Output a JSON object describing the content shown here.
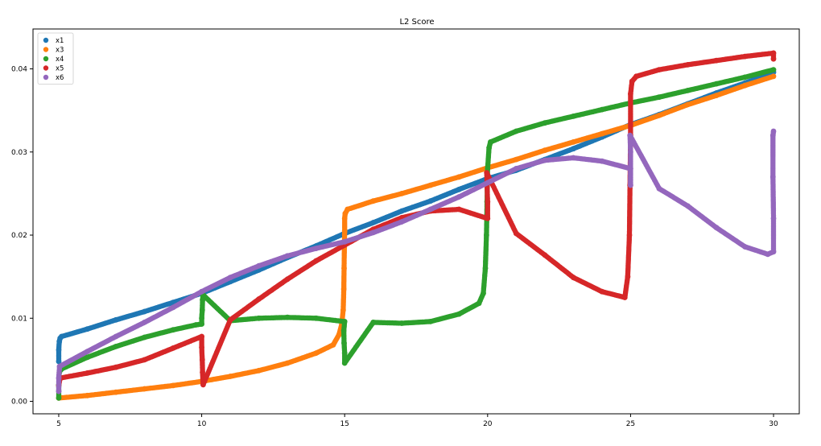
{
  "chart_data": {
    "type": "scatter",
    "title": "L2 Score",
    "xlabel": "",
    "ylabel": "",
    "xlim": [
      4.1,
      30.9
    ],
    "ylim": [
      -0.0015,
      0.0448
    ],
    "x_ticks": [
      5,
      10,
      15,
      20,
      25,
      30
    ],
    "x_tick_labels": [
      "5",
      "10",
      "15",
      "20",
      "25",
      "30"
    ],
    "y_ticks": [
      0.0,
      0.01,
      0.02,
      0.03,
      0.04
    ],
    "y_tick_labels": [
      "0.00",
      "0.01",
      "0.02",
      "0.03",
      "0.04"
    ],
    "grid": false,
    "legend": "top-left",
    "marker": "circle",
    "series": [
      {
        "name": "x1",
        "color": "#1f77b4",
        "points": [
          [
            5.0,
            0.0048
          ],
          [
            5.0,
            0.0062
          ],
          [
            5.02,
            0.0072
          ],
          [
            5.05,
            0.0076
          ],
          [
            5.1,
            0.0078
          ],
          [
            6,
            0.0087
          ],
          [
            7,
            0.0098
          ],
          [
            8,
            0.0108
          ],
          [
            9,
            0.0119
          ],
          [
            10,
            0.013
          ],
          [
            11,
            0.0144
          ],
          [
            12,
            0.0158
          ],
          [
            13,
            0.0173
          ],
          [
            14,
            0.0187
          ],
          [
            15,
            0.0202
          ],
          [
            16,
            0.0215
          ],
          [
            17,
            0.0229
          ],
          [
            18,
            0.0241
          ],
          [
            19,
            0.0255
          ],
          [
            20,
            0.0268
          ],
          [
            21,
            0.0278
          ],
          [
            22,
            0.0291
          ],
          [
            23,
            0.0304
          ],
          [
            24,
            0.0318
          ],
          [
            25,
            0.0333
          ],
          [
            26,
            0.0345
          ],
          [
            27,
            0.0358
          ],
          [
            28,
            0.0371
          ],
          [
            29,
            0.0383
          ],
          [
            30,
            0.0396
          ]
        ]
      },
      {
        "name": "x3",
        "color": "#ff7f0e",
        "points": [
          [
            5.0,
            0.0004
          ],
          [
            6,
            0.0007
          ],
          [
            7,
            0.0011
          ],
          [
            8,
            0.0015
          ],
          [
            9,
            0.0019
          ],
          [
            10,
            0.0024
          ],
          [
            11,
            0.003
          ],
          [
            12,
            0.0037
          ],
          [
            13,
            0.0046
          ],
          [
            14,
            0.0058
          ],
          [
            14.6,
            0.0068
          ],
          [
            14.8,
            0.008
          ],
          [
            14.9,
            0.0093
          ],
          [
            14.95,
            0.011
          ],
          [
            14.97,
            0.0135
          ],
          [
            14.98,
            0.016
          ],
          [
            14.99,
            0.0185
          ],
          [
            15.0,
            0.0205
          ],
          [
            15.0,
            0.022
          ],
          [
            15.02,
            0.0226
          ],
          [
            15.1,
            0.0231
          ],
          [
            16,
            0.0241
          ],
          [
            17,
            0.025
          ],
          [
            18,
            0.026
          ],
          [
            19,
            0.027
          ],
          [
            20,
            0.0281
          ],
          [
            21,
            0.0291
          ],
          [
            22,
            0.0302
          ],
          [
            23,
            0.0312
          ],
          [
            24,
            0.0322
          ],
          [
            25,
            0.0332
          ],
          [
            26,
            0.0344
          ],
          [
            27,
            0.0357
          ],
          [
            28,
            0.0368
          ],
          [
            29,
            0.038
          ],
          [
            30,
            0.0391
          ]
        ]
      },
      {
        "name": "x4",
        "color": "#2ca02c",
        "points": [
          [
            5.0,
            0.0004
          ],
          [
            5.0,
            0.002
          ],
          [
            5.02,
            0.0035
          ],
          [
            5.1,
            0.0039
          ],
          [
            6,
            0.0053
          ],
          [
            7,
            0.0066
          ],
          [
            8,
            0.0077
          ],
          [
            9,
            0.0086
          ],
          [
            9.8,
            0.0092
          ],
          [
            10,
            0.0093
          ],
          [
            10.0,
            0.01
          ],
          [
            10.02,
            0.011
          ],
          [
            10.03,
            0.0122
          ],
          [
            10.05,
            0.0128
          ],
          [
            11,
            0.0097
          ],
          [
            12,
            0.01
          ],
          [
            13,
            0.0101
          ],
          [
            14,
            0.01
          ],
          [
            15,
            0.0096
          ],
          [
            14.97,
            0.0085
          ],
          [
            14.98,
            0.007
          ],
          [
            15.0,
            0.0058
          ],
          [
            15.0,
            0.0046
          ],
          [
            16,
            0.0095
          ],
          [
            17,
            0.0094
          ],
          [
            18,
            0.0096
          ],
          [
            19,
            0.0105
          ],
          [
            19.7,
            0.0118
          ],
          [
            19.85,
            0.013
          ],
          [
            19.92,
            0.016
          ],
          [
            19.96,
            0.02
          ],
          [
            19.98,
            0.024
          ],
          [
            20.0,
            0.028
          ],
          [
            20.05,
            0.0305
          ],
          [
            20.1,
            0.0312
          ],
          [
            21,
            0.0325
          ],
          [
            22,
            0.0335
          ],
          [
            23,
            0.0343
          ],
          [
            24,
            0.0351
          ],
          [
            25,
            0.0359
          ],
          [
            26,
            0.0366
          ],
          [
            27,
            0.0374
          ],
          [
            28,
            0.0382
          ],
          [
            29,
            0.039
          ],
          [
            30,
            0.0399
          ]
        ]
      },
      {
        "name": "x5",
        "color": "#d62728",
        "points": [
          [
            5.0,
            0.0019
          ],
          [
            5.05,
            0.0028
          ],
          [
            6,
            0.0034
          ],
          [
            7,
            0.0041
          ],
          [
            8,
            0.005
          ],
          [
            9,
            0.0064
          ],
          [
            10,
            0.0078
          ],
          [
            10.0,
            0.0065
          ],
          [
            10.02,
            0.005
          ],
          [
            10.03,
            0.0035
          ],
          [
            10.05,
            0.002
          ],
          [
            11,
            0.0098
          ],
          [
            12,
            0.0123
          ],
          [
            13,
            0.0147
          ],
          [
            14,
            0.0169
          ],
          [
            15,
            0.0188
          ],
          [
            16,
            0.0207
          ],
          [
            17,
            0.0221
          ],
          [
            18,
            0.0229
          ],
          [
            19,
            0.0231
          ],
          [
            20,
            0.022
          ],
          [
            20.0,
            0.024
          ],
          [
            19.98,
            0.026
          ],
          [
            19.97,
            0.0275
          ],
          [
            21,
            0.0202
          ],
          [
            22,
            0.0176
          ],
          [
            23,
            0.0149
          ],
          [
            24,
            0.0132
          ],
          [
            24.8,
            0.0125
          ],
          [
            24.9,
            0.015
          ],
          [
            24.96,
            0.02
          ],
          [
            24.98,
            0.026
          ],
          [
            25.0,
            0.032
          ],
          [
            25.0,
            0.037
          ],
          [
            25.05,
            0.0385
          ],
          [
            25.2,
            0.0391
          ],
          [
            26,
            0.0399
          ],
          [
            27,
            0.0405
          ],
          [
            28,
            0.041
          ],
          [
            29,
            0.0415
          ],
          [
            30,
            0.0419
          ],
          [
            30.0,
            0.0412
          ]
        ]
      },
      {
        "name": "x6",
        "color": "#9467bd",
        "points": [
          [
            5.0,
            0.0012
          ],
          [
            5.0,
            0.0028
          ],
          [
            5.03,
            0.0042
          ],
          [
            6,
            0.006
          ],
          [
            7,
            0.0078
          ],
          [
            8,
            0.0095
          ],
          [
            9,
            0.0113
          ],
          [
            10,
            0.0132
          ],
          [
            11,
            0.0149
          ],
          [
            12,
            0.0163
          ],
          [
            13,
            0.0175
          ],
          [
            14,
            0.0184
          ],
          [
            15,
            0.0192
          ],
          [
            16,
            0.0203
          ],
          [
            17,
            0.0216
          ],
          [
            18,
            0.0231
          ],
          [
            19,
            0.0246
          ],
          [
            20,
            0.0263
          ],
          [
            21,
            0.028
          ],
          [
            22,
            0.029
          ],
          [
            23,
            0.0293
          ],
          [
            24,
            0.0289
          ],
          [
            25,
            0.028
          ],
          [
            25.0,
            0.026
          ],
          [
            25.0,
            0.03
          ],
          [
            24.98,
            0.032
          ],
          [
            26,
            0.0256
          ],
          [
            27,
            0.0235
          ],
          [
            28,
            0.0209
          ],
          [
            29,
            0.0186
          ],
          [
            29.8,
            0.0177
          ],
          [
            30,
            0.018
          ],
          [
            30.0,
            0.022
          ],
          [
            29.98,
            0.027
          ],
          [
            29.98,
            0.032
          ],
          [
            30.0,
            0.0325
          ]
        ]
      }
    ]
  }
}
